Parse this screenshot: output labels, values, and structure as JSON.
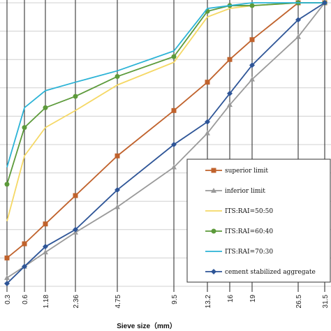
{
  "chart_data": {
    "type": "line",
    "xlabel": "Sieve size（mm）",
    "ylabel": "",
    "categories": [
      "0.3",
      "0.6",
      "1.18",
      "2.36",
      "4.75",
      "9.5",
      "13.2",
      "16",
      "19",
      "26.5",
      "31.5"
    ],
    "ylim": [
      0,
      100
    ],
    "grid": true,
    "legend_position": "bottom-right",
    "series": [
      {
        "name": "superior limit",
        "color": "#c0622c",
        "marker": "square",
        "values": [
          10,
          15,
          22,
          32,
          46,
          62,
          72,
          80,
          87,
          100,
          100
        ]
      },
      {
        "name": "inferior limit",
        "color": "#9a9a9a",
        "marker": "triangle",
        "values": [
          3,
          7,
          12,
          19,
          28,
          42,
          54,
          64,
          73,
          88,
          100
        ]
      },
      {
        "name": "ITS:RAI=50:50",
        "color": "#f5d865",
        "marker": "none",
        "values": [
          23,
          46,
          56,
          62,
          71,
          79,
          95,
          98,
          99,
          100,
          100
        ]
      },
      {
        "name": "ITS:RAI=60:40",
        "color": "#5c9a3a",
        "marker": "circle",
        "values": [
          36,
          56,
          63,
          67,
          74,
          81,
          97,
          99,
          99,
          100,
          100
        ]
      },
      {
        "name": "ITS:RAI=70:30",
        "color": "#2bb3d6",
        "marker": "none",
        "values": [
          42,
          63,
          69,
          72,
          76,
          83,
          98,
          99,
          100,
          100,
          100
        ]
      },
      {
        "name": "cement stabilized aggregate",
        "color": "#2e5597",
        "marker": "diamond",
        "values": [
          1,
          7,
          14,
          20,
          34,
          50,
          58,
          68,
          78,
          94,
          100
        ]
      }
    ]
  }
}
